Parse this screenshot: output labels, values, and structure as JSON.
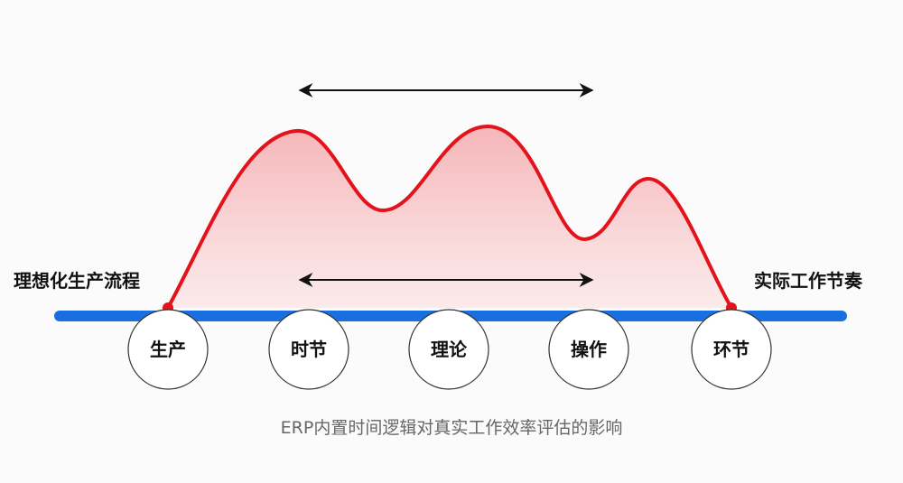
{
  "left_label": "理想化生产流程",
  "right_label": "实际工作节奏",
  "nodes": [
    "生产",
    "时节",
    "理论",
    "操作",
    "环节"
  ],
  "caption": "ERP内置时间逻辑对真实工作效率评估的影响",
  "colors": {
    "baseline": "#1a6fe0",
    "curve": "#e3121b",
    "fill": "#f7b9bc",
    "arrow": "#111111"
  }
}
